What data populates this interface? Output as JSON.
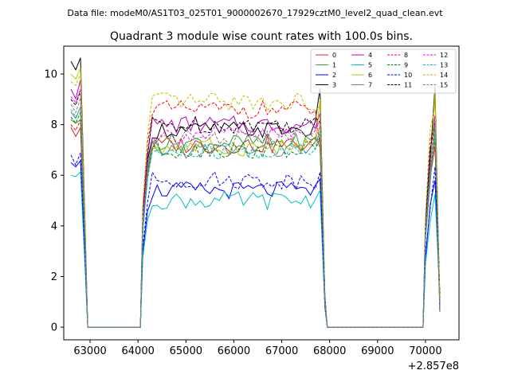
{
  "figure": {
    "suptitle": "Data file: modeM0/AS1T03_025T01_9000002670_17929cztM0_level2_quad_clean.evt"
  },
  "chart_data": {
    "type": "line",
    "title": "Quadrant 3 module wise count rates with 100.0s bins.",
    "xlabel": "",
    "ylabel": "",
    "x_offset_label": "+2.857e8",
    "xlim": [
      62450,
      70700
    ],
    "ylim": [
      -0.5,
      11.1
    ],
    "x_ticks": [
      63000,
      64000,
      65000,
      66000,
      67000,
      68000,
      69000,
      70000
    ],
    "x_tick_labels": [
      "63000",
      "64000",
      "65000",
      "66000",
      "67000",
      "68000",
      "69000",
      "70000"
    ],
    "y_ticks": [
      0,
      2,
      4,
      6,
      8,
      10
    ],
    "y_tick_labels": [
      "0",
      "2",
      "4",
      "6",
      "8",
      "10"
    ],
    "grid": false,
    "legend_position": "top-right",
    "segments": [
      {
        "start": 62600,
        "end": 62900
      },
      {
        "start": 64100,
        "end": 67800
      },
      {
        "start": 70000,
        "end": 70300
      }
    ],
    "zero_gaps": [
      {
        "start": 62950,
        "end": 64050
      },
      {
        "start": 67950,
        "end": 69950
      }
    ],
    "series": [
      {
        "name": "0",
        "color": "#d62728",
        "dash": "solid",
        "level": 7.2,
        "first": 7.9
      },
      {
        "name": "1",
        "color": "#2ca02c",
        "dash": "solid",
        "level": 7.3,
        "first": 8.2
      },
      {
        "name": "2",
        "color": "#0000ff",
        "dash": "solid",
        "level": 5.4,
        "first": 6.5
      },
      {
        "name": "3",
        "color": "#000000",
        "dash": "solid",
        "level": 7.8,
        "first": 10.5
      },
      {
        "name": "4",
        "color": "#bf00bf",
        "dash": "solid",
        "level": 8.0,
        "first": 9.4
      },
      {
        "name": "5",
        "color": "#00bfbf",
        "dash": "solid",
        "level": 5.0,
        "first": 6.0
      },
      {
        "name": "6",
        "color": "#bfbf00",
        "dash": "solid",
        "level": 7.1,
        "first": 10.0
      },
      {
        "name": "7",
        "color": "#808080",
        "dash": "solid",
        "level": 7.0,
        "first": 8.5
      },
      {
        "name": "8",
        "color": "#ff0000",
        "dash": "dashed",
        "level": 8.6,
        "first": 8.0
      },
      {
        "name": "9",
        "color": "#008000",
        "dash": "dashed",
        "level": 7.0,
        "first": 8.3
      },
      {
        "name": "10",
        "color": "#0000ff",
        "dash": "dashed",
        "level": 5.8,
        "first": 6.8
      },
      {
        "name": "11",
        "color": "#000000",
        "dash": "dashed",
        "level": 8.0,
        "first": 9.0
      },
      {
        "name": "12",
        "color": "#ff00ff",
        "dash": "dashed",
        "level": 7.6,
        "first": 9.1
      },
      {
        "name": "13",
        "color": "#00bfbf",
        "dash": "dashed",
        "level": 6.9,
        "first": 8.6
      },
      {
        "name": "14",
        "color": "#bfbf00",
        "dash": "dashed",
        "level": 8.9,
        "first": 9.7
      },
      {
        "name": "15",
        "color": "#808080",
        "dash": "dashed",
        "level": 7.5,
        "first": 8.8
      }
    ]
  }
}
